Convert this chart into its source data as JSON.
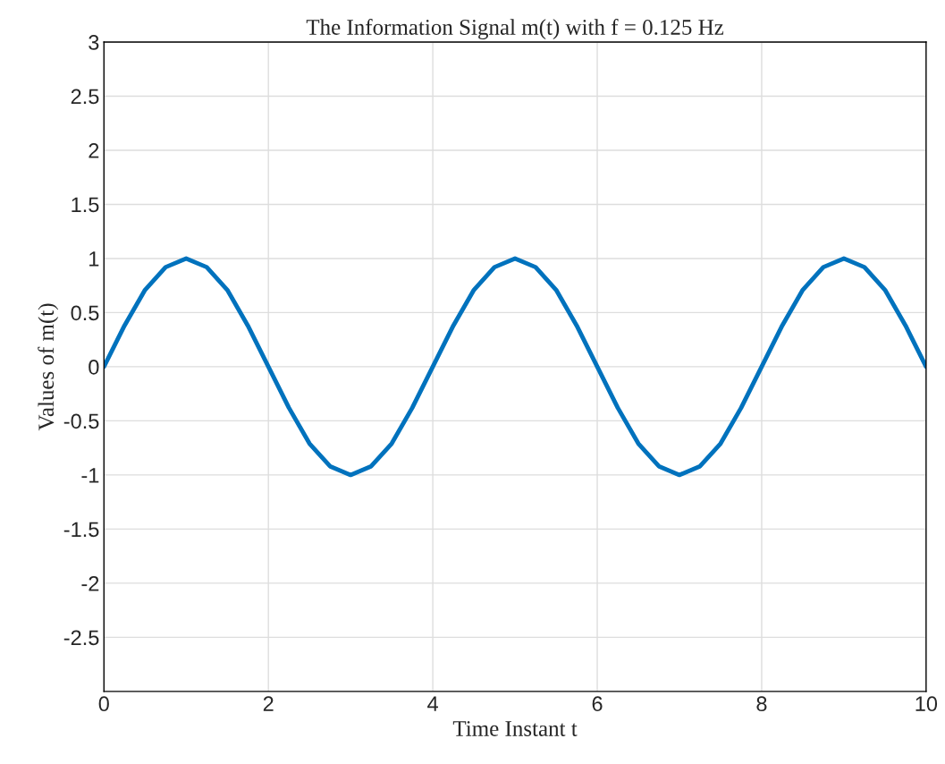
{
  "chart_data": {
    "type": "line",
    "title": "The Information Signal m(t) with f = 0.125 Hz",
    "xlabel": "Time Instant t",
    "ylabel": "Values of m(t)",
    "x": [
      0,
      0.25,
      0.5,
      0.75,
      1,
      1.25,
      1.5,
      1.75,
      2,
      2.25,
      2.5,
      2.75,
      3,
      3.25,
      3.5,
      3.75,
      4,
      4.25,
      4.5,
      4.75,
      5,
      5.25,
      5.5,
      5.75,
      6,
      6.25,
      6.5,
      6.75,
      7,
      7.25,
      7.5,
      7.75,
      8,
      8.25,
      8.5,
      8.75,
      9,
      9.25,
      9.5,
      9.75,
      10
    ],
    "series": [
      {
        "color": "#0072bd",
        "values": [
          0,
          0.38,
          0.71,
          0.92,
          1,
          0.92,
          0.71,
          0.38,
          0,
          -0.38,
          -0.71,
          -0.92,
          -1,
          -0.92,
          -0.71,
          -0.38,
          0,
          0.38,
          0.71,
          0.92,
          1,
          0.92,
          0.71,
          0.38,
          0,
          -0.38,
          -0.71,
          -0.92,
          -1,
          -0.92,
          -0.71,
          -0.38,
          0,
          0.38,
          0.71,
          0.92,
          1,
          0.92,
          0.71,
          0.38,
          0
        ]
      }
    ],
    "xlim": [
      0,
      10
    ],
    "xticks": [
      0,
      2,
      4,
      6,
      8,
      10
    ],
    "ylim": [
      -3,
      3
    ],
    "yticks": [
      -2.5,
      -2,
      -1.5,
      -1,
      -0.5,
      0,
      0.5,
      1,
      1.5,
      2,
      2.5,
      3
    ],
    "grid": true,
    "line_style": "solid",
    "marker": "none"
  }
}
